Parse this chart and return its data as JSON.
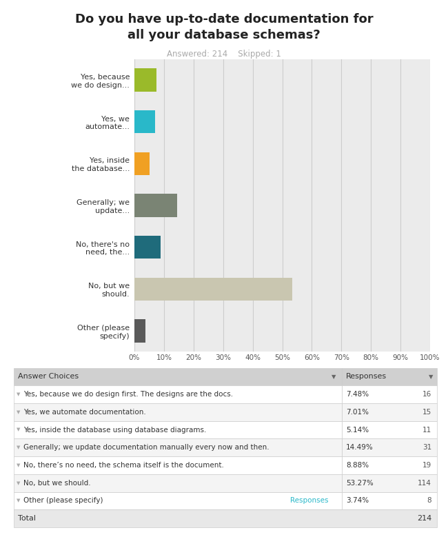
{
  "title": "Do you have up-to-date documentation for\nall your database schemas?",
  "subtitle": "Answered: 214    Skipped: 1",
  "categories": [
    "Yes, because\nwe do design...",
    "Yes, we\nautomate...",
    "Yes, inside\nthe database...",
    "Generally; we\nupdate...",
    "No, there's no\nneed, the...",
    "No, but we\nshould.",
    "Other (please\nspecify)"
  ],
  "values": [
    7.48,
    7.01,
    5.14,
    14.49,
    8.88,
    53.27,
    3.74
  ],
  "counts": [
    16,
    15,
    11,
    31,
    19,
    114,
    8
  ],
  "percentages": [
    "7.48%",
    "7.01%",
    "5.14%",
    "14.49%",
    "8.88%",
    "53.27%",
    "3.74%"
  ],
  "bar_colors": [
    "#9aba2a",
    "#29b8c9",
    "#f0a023",
    "#7a8474",
    "#1f6b7b",
    "#c9c6b0",
    "#5a5a5a"
  ],
  "bg_color": "#ebebeb",
  "table_header_bg": "#d0d0d0",
  "table_answers": [
    "Yes, because we do design first. The designs are the docs.",
    "Yes, we automate documentation.",
    "Yes, inside the database using database diagrams.",
    "Generally; we update documentation manually every now and then.",
    "No, there’s no need, the schema itself is the document.",
    "No, but we should.",
    "Other (please specify)"
  ],
  "total": 214,
  "xlim": [
    0,
    100
  ],
  "teal_color": "#29b8c9",
  "dark_text": "#333333",
  "gray_text": "#aaaaaa",
  "count_color_dark": "#555555"
}
